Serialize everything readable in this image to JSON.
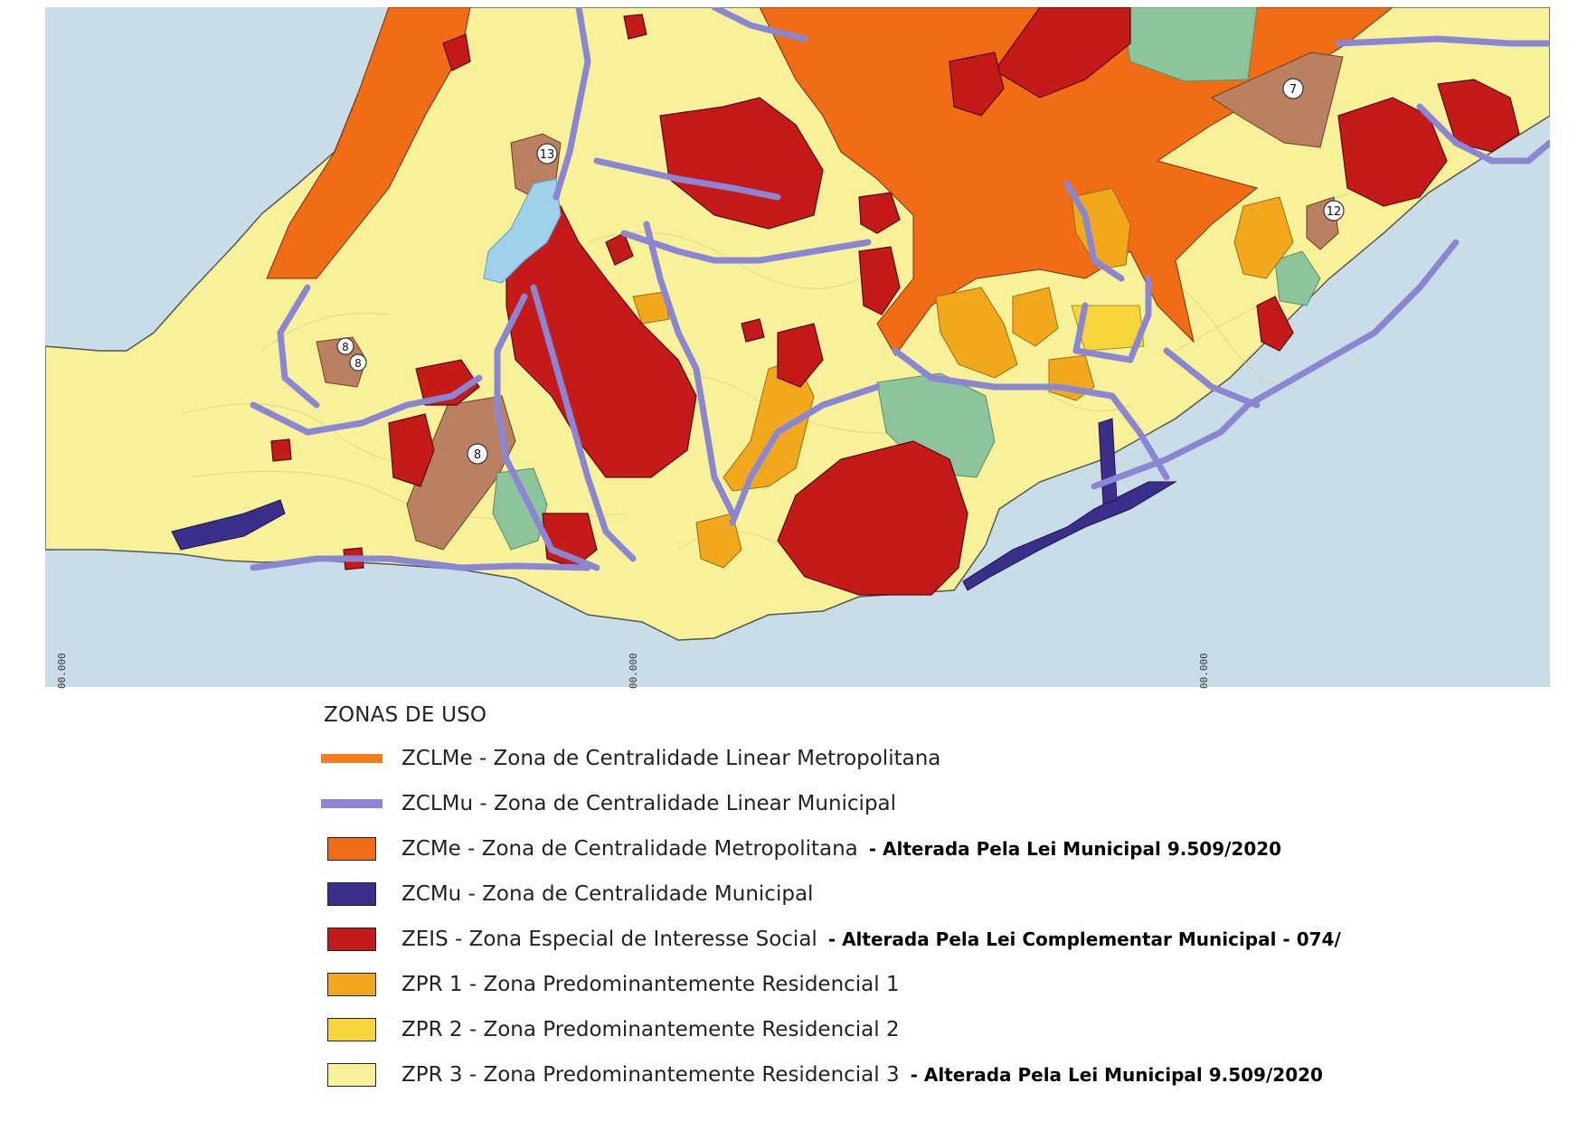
{
  "map": {
    "markers": [
      {
        "label": "13"
      },
      {
        "label": "7"
      },
      {
        "label": "12"
      },
      {
        "label": "8"
      },
      {
        "label": "8"
      },
      {
        "label": "8"
      }
    ],
    "coordinates": [
      "00.000",
      "00.000",
      "00.000"
    ],
    "colors": {
      "sea": "#c9dde9",
      "land": "#f7f19a",
      "zclme": "#f47b1e",
      "zclmu": "#8a86d3",
      "zcme": "#f06d15",
      "zcmu": "#3b2f8c",
      "zeis": "#c51a1a",
      "zpr1": "#f2a81c",
      "zpr2": "#f5d53a",
      "zpr3": "#f7f19a",
      "green": "#8cc49b",
      "brown": "#b98061",
      "lake": "#9fd1ec"
    }
  },
  "legend": {
    "title": "ZONAS DE USO",
    "items": [
      {
        "label": "ZCLMe - Zona de Centralidade Linear Metropolitana",
        "note": "",
        "color": "#f47b1e",
        "kind": "line"
      },
      {
        "label": "ZCLMu - Zona de Centralidade Linear Municipal",
        "note": "",
        "color": "#8a86d3",
        "kind": "line"
      },
      {
        "label": "ZCMe - Zona de Centralidade Metropolitana",
        "note": "- Alterada Pela Lei Municipal 9.509/2020",
        "color": "#f06d15",
        "kind": "box"
      },
      {
        "label": "ZCMu - Zona de Centralidade Municipal",
        "note": "",
        "color": "#3b2f8c",
        "kind": "box"
      },
      {
        "label": "ZEIS - Zona Especial de Interesse Social",
        "note": "- Alterada Pela Lei Complementar Municipal - 074/",
        "color": "#c51a1a",
        "kind": "box"
      },
      {
        "label": "ZPR 1 - Zona Predominantemente Residencial 1",
        "note": "",
        "color": "#f2a81c",
        "kind": "box"
      },
      {
        "label": "ZPR 2 - Zona Predominantemente Residencial 2",
        "note": "",
        "color": "#f5d53a",
        "kind": "box"
      },
      {
        "label": "ZPR 3 - Zona Predominantemente Residencial 3",
        "note": "- Alterada Pela Lei Municipal 9.509/2020",
        "color": "#f7f19a",
        "kind": "box"
      }
    ]
  }
}
